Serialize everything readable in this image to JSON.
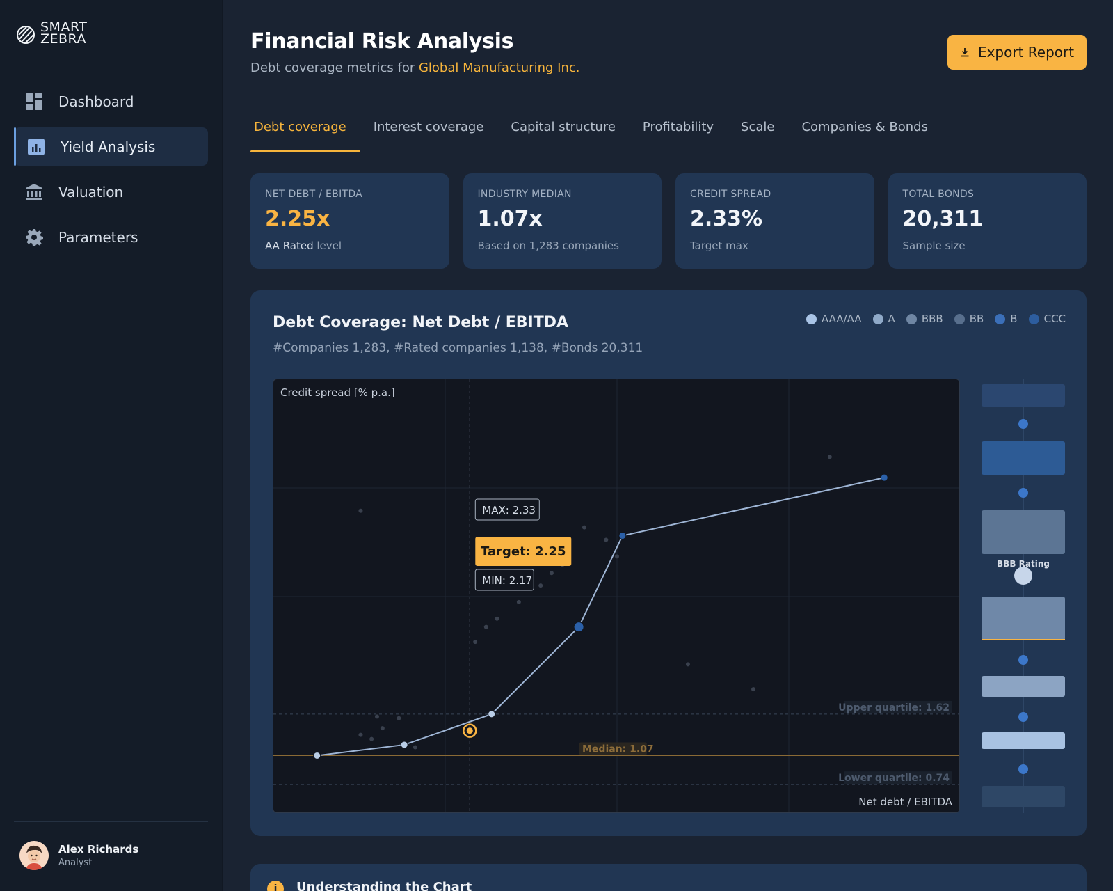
{
  "brand": {
    "line1": "SMART",
    "line2": "ZEBRA"
  },
  "nav": [
    {
      "label": "Dashboard",
      "icon": "dashboard-icon",
      "active": false
    },
    {
      "label": "Yield Analysis",
      "icon": "chart-icon",
      "active": true
    },
    {
      "label": "Valuation",
      "icon": "bank-icon",
      "active": false
    },
    {
      "label": "Parameters",
      "icon": "gear-icon",
      "active": false
    }
  ],
  "user": {
    "name": "Alex Richards",
    "role": "Analyst"
  },
  "header": {
    "title": "Financial Risk Analysis",
    "subtitle_prefix": "Debt coverage metrics for ",
    "company": "Global Manufacturing Inc.",
    "export_label": "Export Report"
  },
  "tabs": [
    {
      "label": "Debt coverage",
      "active": true
    },
    {
      "label": "Interest coverage",
      "active": false
    },
    {
      "label": "Capital structure",
      "active": false
    },
    {
      "label": "Profitability",
      "active": false
    },
    {
      "label": "Scale",
      "active": false
    },
    {
      "label": "Companies & Bonds",
      "active": false
    }
  ],
  "metrics": [
    {
      "label": "NET DEBT / EBITDA",
      "value": "2.25x",
      "note_strong": "AA Rated",
      "note": " level",
      "accent": true
    },
    {
      "label": "INDUSTRY MEDIAN",
      "value": "1.07x",
      "note_strong": "",
      "note": "Based on 1,283 companies",
      "accent": false
    },
    {
      "label": "CREDIT SPREAD",
      "value": "2.33%",
      "note_strong": "",
      "note": "Target max",
      "accent": false
    },
    {
      "label": "TOTAL BONDS",
      "value": "20,311",
      "note_strong": "",
      "note": "Sample size",
      "accent": false
    }
  ],
  "chart_card": {
    "title": "Debt Coverage: Net Debt / EBITDA",
    "subtitle": "#Companies 1,283, #Rated companies 1,138, #Bonds 20,311",
    "legend": [
      {
        "label": "AAA/AA",
        "color": "#a9c4e6"
      },
      {
        "label": "A",
        "color": "#8fa9c8"
      },
      {
        "label": "BBB",
        "color": "#6f86a3"
      },
      {
        "label": "BB",
        "color": "#586f8d"
      },
      {
        "label": "B",
        "color": "#3b6fb8"
      },
      {
        "label": "CCC",
        "color": "#2d5d9e"
      }
    ]
  },
  "chart_data": {
    "type": "line",
    "ylabel": "Credit spread [% p.a.]",
    "xlabel": "Net debt / EBITDA",
    "series": [
      {
        "points": [
          [
            0.4,
            0.55
          ],
          [
            1.2,
            0.68
          ],
          [
            2.0,
            1.05
          ],
          [
            2.8,
            2.1
          ],
          [
            3.2,
            3.2
          ],
          [
            5.6,
            3.9
          ]
        ],
        "colors": [
          "#b9cde6",
          "#b9cde6",
          "#b9cde6",
          "#2b60a8",
          "#2b60a8",
          "#2b60a8"
        ]
      }
    ],
    "scatter": [
      [
        0.8,
        0.8
      ],
      [
        0.9,
        0.75
      ],
      [
        1.0,
        0.88
      ],
      [
        0.95,
        1.02
      ],
      [
        1.15,
        1.0
      ],
      [
        1.3,
        0.65
      ],
      [
        1.85,
        1.92
      ],
      [
        1.95,
        2.1
      ],
      [
        2.05,
        2.2
      ],
      [
        2.25,
        2.4
      ],
      [
        2.45,
        2.6
      ],
      [
        2.55,
        2.75
      ],
      [
        2.65,
        2.85
      ],
      [
        2.85,
        3.3
      ],
      [
        3.05,
        3.15
      ],
      [
        3.15,
        2.95
      ],
      [
        3.8,
        1.65
      ],
      [
        4.4,
        1.35
      ],
      [
        0.8,
        3.5
      ],
      [
        5.1,
        4.15
      ]
    ],
    "target": {
      "x": 1.8,
      "y": 0.85,
      "label": "Target: 2.25",
      "max_label": "MAX: 2.33",
      "min_label": "MIN: 2.17"
    },
    "reference_lines": [
      {
        "label": "Upper quartile: 1.62",
        "y": 1.05,
        "style": "dashed"
      },
      {
        "label": "Median: 1.07",
        "y": 0.55,
        "style": "solid"
      },
      {
        "label": "Lower quartile: 0.74",
        "y": 0.2,
        "style": "dashed"
      }
    ],
    "xlim": [
      0,
      6.3
    ],
    "ylim": [
      0,
      5
    ]
  },
  "rating_strip": {
    "label": "BBB Rating",
    "bands": [
      "#2b4770",
      "#2d5b95",
      "#5c7594",
      "#6f88a8",
      "#8ca4c3",
      "#a8c2e2",
      "#2e4766"
    ],
    "accent": "#f9b443"
  },
  "info": {
    "icon": "i",
    "title": "Understanding the Chart"
  }
}
